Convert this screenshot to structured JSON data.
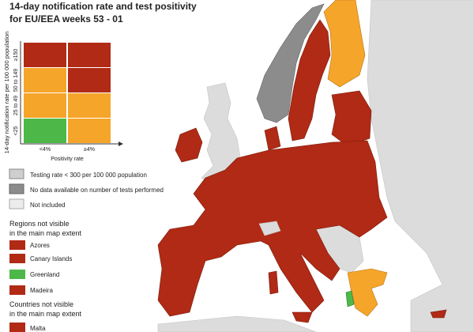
{
  "header": {
    "title_lines": [
      "14-day notification rate and test positivity",
      "for EU/EEA weeks 53 - 01"
    ]
  },
  "matrix": {
    "y_axis_label": "14-day notification rate per 100 000 population",
    "rows": [
      "≥150",
      "50 to 149",
      "25 to 49",
      "<25"
    ],
    "columns": [
      "<4%",
      "≥4%"
    ],
    "x_axis_label": "Positivity rate"
  },
  "legend": {
    "items": [
      "Testing rate < 300 per 100 000 population",
      "No data available on number of tests performed",
      "Not included"
    ]
  },
  "regions": {
    "heading_lines": [
      "Regions not visible",
      "in the main map extent"
    ],
    "items": [
      "Azores",
      "Canary Islands",
      "Greenland",
      "Madeira"
    ]
  },
  "countries": {
    "heading_lines": [
      "Countries not visible",
      "in the main map extent"
    ],
    "items": [
      "Malta"
    ]
  }
}
